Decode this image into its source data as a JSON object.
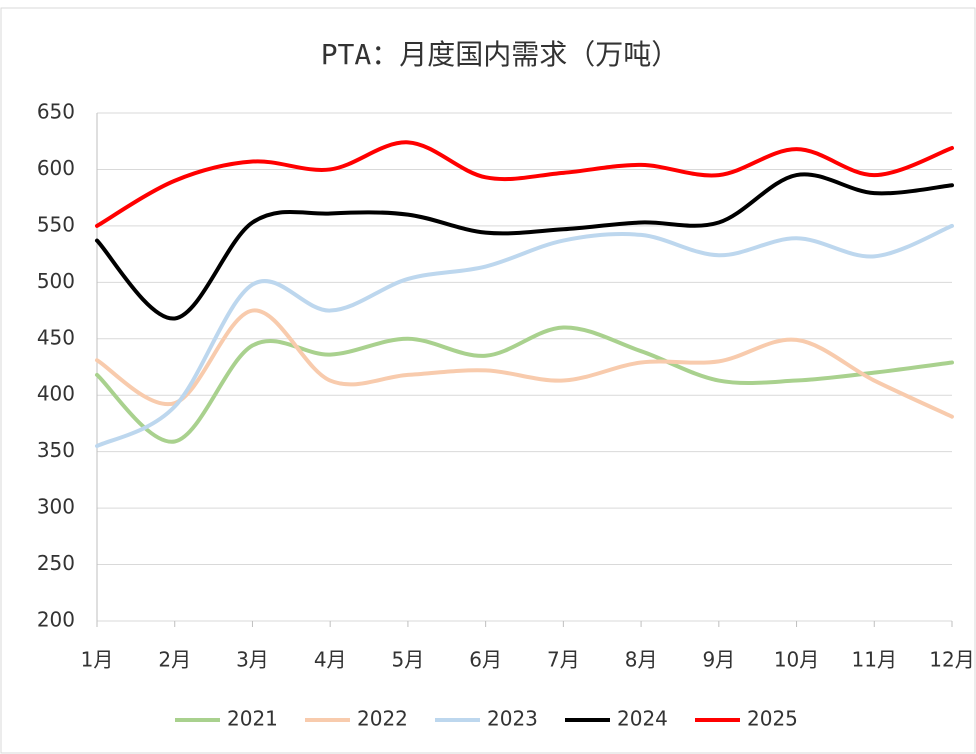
{
  "chart_data": {
    "type": "line",
    "title": "PTA：月度国内需求（万吨）",
    "categories": [
      "1月",
      "2月",
      "3月",
      "4月",
      "5月",
      "6月",
      "7月",
      "8月",
      "9月",
      "10月",
      "11月",
      "12月"
    ],
    "series": [
      {
        "name": "2021",
        "color": "#a9d18e",
        "values": [
          418,
          359,
          444,
          436,
          450,
          435,
          460,
          439,
          413,
          413,
          420,
          429
        ]
      },
      {
        "name": "2022",
        "color": "#f8cbad",
        "values": [
          431,
          393,
          475,
          413,
          418,
          422,
          413,
          429,
          430,
          449,
          413,
          381
        ]
      },
      {
        "name": "2023",
        "color": "#bdd7ee",
        "values": [
          355,
          390,
          498,
          475,
          503,
          514,
          537,
          542,
          524,
          539,
          523,
          550
        ]
      },
      {
        "name": "2024",
        "color": "#000000",
        "values": [
          537,
          468,
          553,
          561,
          560,
          544,
          547,
          553,
          553,
          595,
          579,
          586
        ]
      },
      {
        "name": "2025",
        "color": "#ff0000",
        "values": [
          550,
          590,
          607,
          600,
          624,
          593,
          597,
          604,
          595,
          618,
          595,
          619
        ]
      }
    ],
    "ylim": [
      200,
      650
    ],
    "yticks": [
      200,
      250,
      300,
      350,
      400,
      450,
      500,
      550,
      600,
      650
    ],
    "grid": true,
    "legend": "bottom"
  }
}
